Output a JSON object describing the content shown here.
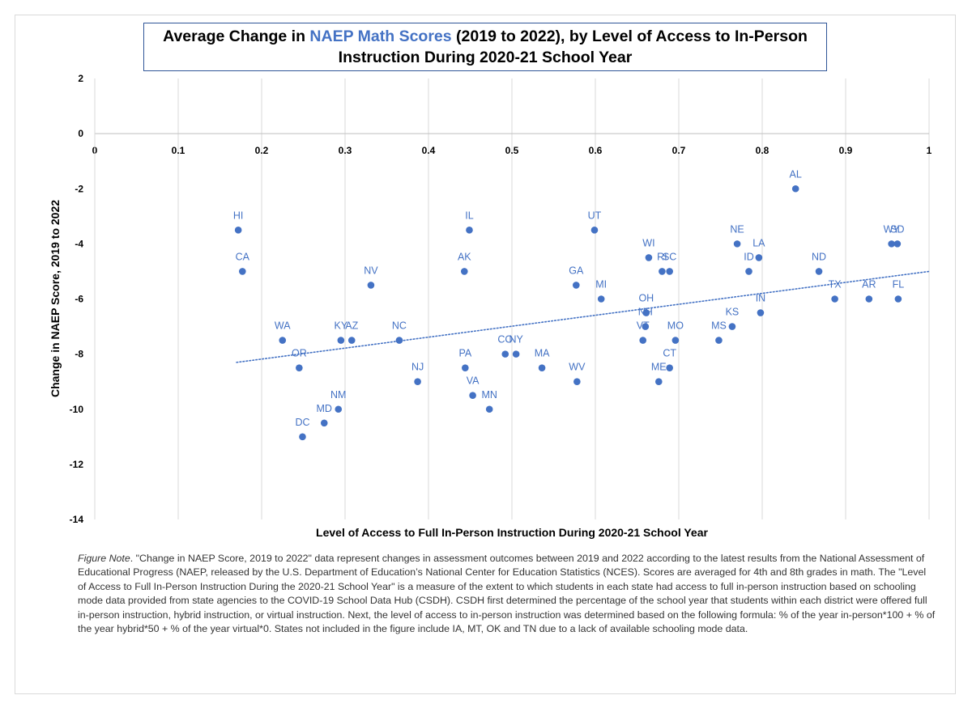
{
  "chart_data": {
    "type": "scatter",
    "title_parts": {
      "before": "Average Change in ",
      "highlight": "NAEP Math Scores",
      "after": " (2019 to 2022), by Level of Access to In-Person Instruction During 2020-21 School Year"
    },
    "xlabel": "Level of Access to Full In-Person Instruction During 2020-21 School Year",
    "ylabel": "Change in NAEP Score, 2019 to 2022",
    "xlim": [
      0,
      1
    ],
    "ylim": [
      -14,
      2
    ],
    "x_ticks": [
      "0",
      "0.1",
      "0.2",
      "0.3",
      "0.4",
      "0.5",
      "0.6",
      "0.7",
      "0.8",
      "0.9",
      "1"
    ],
    "y_ticks": [
      "2",
      "0",
      "-2",
      "-4",
      "-6",
      "-8",
      "-10",
      "-12",
      "-14"
    ],
    "grid": "vertical",
    "marker_color": "#4472c4",
    "label_color": "#4472c4",
    "trendline": {
      "style": "dotted",
      "color": "#4472c4",
      "x": [
        0.17,
        1.0
      ],
      "y": [
        -8.3,
        -5.0
      ]
    },
    "points": [
      {
        "label": "HI",
        "x": 0.172,
        "y": -3.5
      },
      {
        "label": "CA",
        "x": 0.177,
        "y": -5.0
      },
      {
        "label": "WA",
        "x": 0.225,
        "y": -7.5
      },
      {
        "label": "OR",
        "x": 0.245,
        "y": -8.5
      },
      {
        "label": "DC",
        "x": 0.249,
        "y": -11.0
      },
      {
        "label": "MD",
        "x": 0.275,
        "y": -10.5
      },
      {
        "label": "NM",
        "x": 0.292,
        "y": -10.0
      },
      {
        "label": "KY",
        "x": 0.295,
        "y": -7.5
      },
      {
        "label": "AZ",
        "x": 0.308,
        "y": -7.5
      },
      {
        "label": "NV",
        "x": 0.331,
        "y": -5.5
      },
      {
        "label": "NC",
        "x": 0.365,
        "y": -7.5
      },
      {
        "label": "NJ",
        "x": 0.387,
        "y": -9.0
      },
      {
        "label": "AK",
        "x": 0.443,
        "y": -5.0
      },
      {
        "label": "PA",
        "x": 0.444,
        "y": -8.5
      },
      {
        "label": "IL",
        "x": 0.449,
        "y": -3.5
      },
      {
        "label": "VA",
        "x": 0.453,
        "y": -9.5
      },
      {
        "label": "MN",
        "x": 0.473,
        "y": -10.0
      },
      {
        "label": "CO",
        "x": 0.492,
        "y": -8.0
      },
      {
        "label": "NY",
        "x": 0.505,
        "y": -8.0
      },
      {
        "label": "MA",
        "x": 0.536,
        "y": -8.5
      },
      {
        "label": "GA",
        "x": 0.577,
        "y": -5.5
      },
      {
        "label": "WV",
        "x": 0.578,
        "y": -9.0
      },
      {
        "label": "UT",
        "x": 0.599,
        "y": -3.5
      },
      {
        "label": "MI",
        "x": 0.607,
        "y": -6.0
      },
      {
        "label": "VT",
        "x": 0.657,
        "y": -7.5
      },
      {
        "label": "NH",
        "x": 0.66,
        "y": -7.0
      },
      {
        "label": "OH",
        "x": 0.661,
        "y": -6.5
      },
      {
        "label": "WI",
        "x": 0.664,
        "y": -4.5
      },
      {
        "label": "ME",
        "x": 0.676,
        "y": -9.0
      },
      {
        "label": "RI",
        "x": 0.68,
        "y": -5.0
      },
      {
        "label": "SC",
        "x": 0.689,
        "y": -5.0
      },
      {
        "label": "CT",
        "x": 0.689,
        "y": -8.5
      },
      {
        "label": "MO",
        "x": 0.696,
        "y": -7.5
      },
      {
        "label": "MS",
        "x": 0.748,
        "y": -7.5
      },
      {
        "label": "KS",
        "x": 0.764,
        "y": -7.0
      },
      {
        "label": "NE",
        "x": 0.77,
        "y": -4.0
      },
      {
        "label": "ID",
        "x": 0.784,
        "y": -5.0
      },
      {
        "label": "LA",
        "x": 0.796,
        "y": -4.5
      },
      {
        "label": "IN",
        "x": 0.798,
        "y": -6.5
      },
      {
        "label": "AL",
        "x": 0.84,
        "y": -2.0
      },
      {
        "label": "ND",
        "x": 0.868,
        "y": -5.0
      },
      {
        "label": "TX",
        "x": 0.887,
        "y": -6.0
      },
      {
        "label": "AR",
        "x": 0.928,
        "y": -6.0
      },
      {
        "label": "WY",
        "x": 0.955,
        "y": -4.0
      },
      {
        "label": "SD",
        "x": 0.962,
        "y": -4.0
      },
      {
        "label": "FL",
        "x": 0.963,
        "y": -6.0
      }
    ]
  },
  "figure_note": {
    "lead": "Figure Note",
    "text": ". \"Change in NAEP Score, 2019 to 2022\" data represent changes in assessment outcomes between 2019 and 2022 according to the latest results from the National Assessment of Educational Progress (NAEP, released by the U.S. Department of Education’s National Center for Education Statistics (NCES). Scores are averaged for 4th and 8th grades in math. The \"Level of Access to Full In-Person Instruction During the 2020-21 School Year\" is a measure of the extent to which students in each state had access to full in-person instruction based on schooling mode data provided from state agencies to the COVID-19 School Data Hub (CSDH). CSDH first determined the percentage of the school year that students within each district were offered full in-person instruction, hybrid instruction, or virtual instruction. Next, the level of access to in-person instruction was determined based on the following formula: % of the year in-person*100 + % of the year hybrid*50 + % of the year virtual*0. States not included in the figure include IA, MT, OK and TN due to a lack of available schooling mode data."
  }
}
